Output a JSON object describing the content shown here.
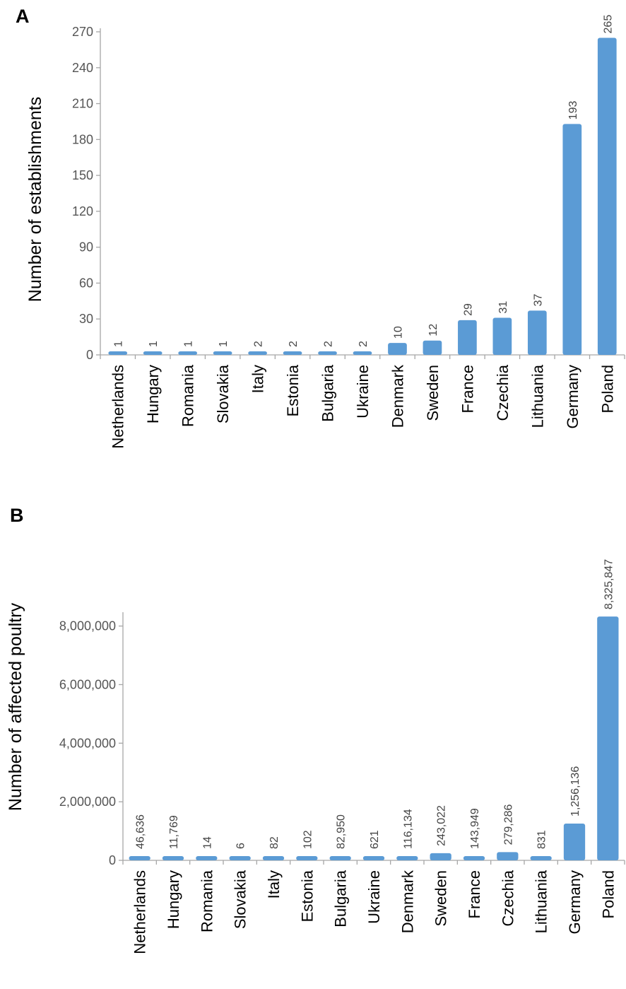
{
  "chart_data": [
    {
      "panel": "A",
      "type": "bar",
      "ylabel": "Number of establishments",
      "ylim": [
        0,
        270
      ],
      "yticks": [
        "0",
        "30",
        "60",
        "90",
        "120",
        "150",
        "180",
        "210",
        "240",
        "270"
      ],
      "categories": [
        "Netherlands",
        "Hungary",
        "Romania",
        "Slovakia",
        "Italy",
        "Estonia",
        "Bulgaria",
        "Ukraine",
        "Denmark",
        "Sweden",
        "France",
        "Czechia",
        "Lithuania",
        "Germany",
        "Poland"
      ],
      "values": [
        1,
        1,
        1,
        1,
        2,
        2,
        2,
        2,
        10,
        12,
        29,
        31,
        37,
        193,
        265
      ],
      "data_labels": [
        "1",
        "1",
        "1",
        "1",
        "2",
        "2",
        "2",
        "2",
        "10",
        "12",
        "29",
        "31",
        "37",
        "193",
        "265"
      ],
      "grid": false,
      "legend": "none",
      "bar_color": "#5b9bd5"
    },
    {
      "panel": "B",
      "type": "bar",
      "ylabel": "Number of affected poultry",
      "ylim": [
        0,
        8400000
      ],
      "yticks": [
        "0",
        "2,000,000",
        "4,000,000",
        "6,000,000",
        "8,000,000"
      ],
      "categories": [
        "Netherlands",
        "Hungary",
        "Romania",
        "Slovakia",
        "Italy",
        "Estonia",
        "Bulgaria",
        "Ukraine",
        "Denmark",
        "Sweden",
        "France",
        "Czechia",
        "Lithuania",
        "Germany",
        "Poland"
      ],
      "values": [
        46636,
        11769,
        14,
        6,
        82,
        102,
        82950,
        621,
        116134,
        243022,
        143949,
        279286,
        831,
        1256136,
        8325847
      ],
      "data_labels": [
        "46,636",
        "11,769",
        "14",
        "6",
        "82",
        "102",
        "82,950",
        "621",
        "116,134",
        "243,022",
        "143,949",
        "279,286",
        "831",
        "1,256,136",
        "8,325,847"
      ],
      "grid": false,
      "legend": "none",
      "bar_color": "#5b9bd5"
    }
  ]
}
